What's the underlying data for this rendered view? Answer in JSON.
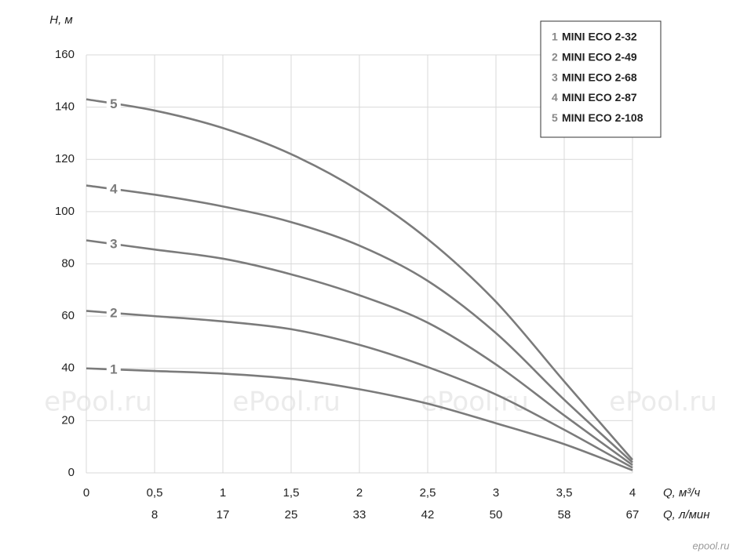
{
  "chart_data": {
    "type": "line",
    "ylabel": "H, м",
    "xlabel": "Q, м³/ч",
    "x2label": "Q, л/мин",
    "x": [
      0,
      0.5,
      1,
      1.5,
      2,
      2.5,
      3,
      3.5,
      4
    ],
    "xlim": [
      0,
      4
    ],
    "ylim": [
      0,
      160
    ],
    "xticks": [
      0,
      {
        "value": 0.5,
        "label": "0,5"
      },
      1,
      {
        "value": 1.5,
        "label": "1,5"
      },
      2,
      {
        "value": 2.5,
        "label": "2,5"
      },
      3,
      {
        "value": 3.5,
        "label": "3,5"
      },
      4
    ],
    "x2ticks": [
      {
        "value": 0.5,
        "label": "8"
      },
      {
        "value": 1,
        "label": "17"
      },
      {
        "value": 1.5,
        "label": "25"
      },
      {
        "value": 2,
        "label": "33"
      },
      {
        "value": 2.5,
        "label": "42"
      },
      {
        "value": 3,
        "label": "50"
      },
      {
        "value": 3.5,
        "label": "58"
      },
      {
        "value": 4,
        "label": "67"
      }
    ],
    "yticks": [
      0,
      20,
      40,
      60,
      80,
      100,
      120,
      140,
      160
    ],
    "grid": true,
    "legend": "top-right",
    "series": [
      {
        "label": "1",
        "name": "MINI ECO 2-32",
        "color": "#7b7b7b",
        "values": [
          40,
          39,
          38,
          36,
          32,
          26.5,
          19,
          11,
          1
        ]
      },
      {
        "label": "2",
        "name": "MINI ECO 2-49",
        "color": "#7b7b7b",
        "values": [
          62,
          60,
          58,
          55,
          49,
          40.5,
          30,
          16.5,
          2
        ]
      },
      {
        "label": "3",
        "name": "MINI ECO 2-68",
        "color": "#7b7b7b",
        "values": [
          89,
          85.5,
          82,
          76,
          68,
          57.5,
          41.5,
          22,
          3
        ]
      },
      {
        "label": "4",
        "name": "MINI ECO 2-87",
        "color": "#7b7b7b",
        "values": [
          110,
          106.5,
          102,
          96,
          87,
          73.5,
          53.5,
          28,
          4
        ]
      },
      {
        "label": "5",
        "name": "MINI ECO 2-108",
        "color": "#7b7b7b",
        "values": [
          143,
          138.7,
          132,
          122,
          108,
          89.5,
          65.5,
          35,
          5
        ]
      }
    ],
    "watermarks": [
      "ePool.ru",
      "ePool.ru",
      "ePool.ru",
      "ePool.ru"
    ],
    "logo": "epool.ru"
  }
}
